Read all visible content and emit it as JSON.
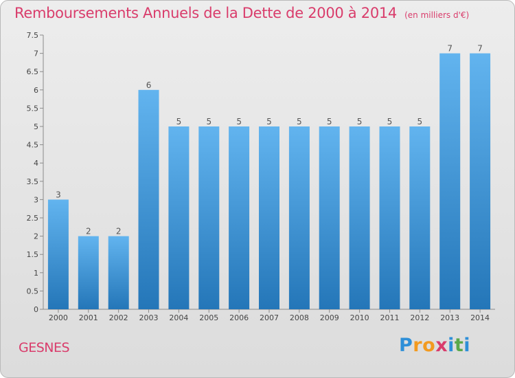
{
  "title": "Remboursements Annuels de la Dette de 2000 à 2014",
  "unit": "(en milliers d'€)",
  "commune": "GESNES",
  "logo": {
    "letters": [
      "P",
      "r",
      "o",
      "x",
      "i",
      "t",
      "i"
    ],
    "colors": [
      "#2e8fd8",
      "#f29a1f",
      "#f29a1f",
      "#d93c6b",
      "#2e8fd8",
      "#5aa84a",
      "#2e8fd8"
    ]
  },
  "colors": {
    "bar_top": "#62b4ef",
    "bar_bottom": "#2476b8",
    "accent": "#d93c6b"
  },
  "chart_data": {
    "type": "bar",
    "categories": [
      "2000",
      "2001",
      "2002",
      "2003",
      "2004",
      "2005",
      "2006",
      "2007",
      "2008",
      "2009",
      "2010",
      "2011",
      "2012",
      "2013",
      "2014"
    ],
    "values": [
      3,
      2,
      2,
      6,
      5,
      5,
      5,
      5,
      5,
      5,
      5,
      5,
      5,
      7,
      7
    ],
    "data_labels": [
      "3",
      "2",
      "2",
      "6",
      "5",
      "5",
      "5",
      "5",
      "5",
      "5",
      "5",
      "5",
      "5",
      "7",
      "7"
    ],
    "yticks": [
      "0",
      "0.5",
      "1",
      "1.5",
      "2",
      "2.5",
      "3",
      "3.5",
      "4",
      "4.5",
      "5",
      "5.5",
      "6",
      "6.5",
      "7",
      "7.5"
    ],
    "ylim": [
      0,
      7.5
    ],
    "grid": false,
    "legend": "none"
  }
}
